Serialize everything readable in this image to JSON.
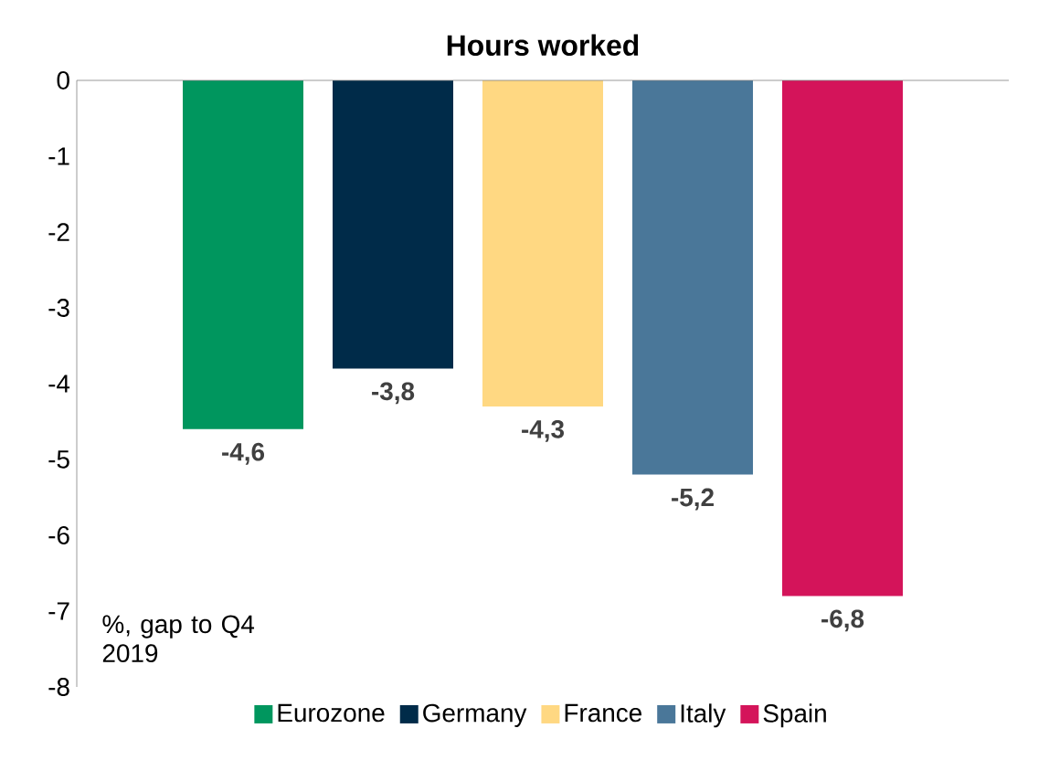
{
  "chart_data": {
    "type": "bar",
    "title": "Hours worked",
    "categories": [
      null
    ],
    "series": [
      {
        "name": "Eurozone",
        "color": "#00965e",
        "values": [
          -4.6
        ],
        "value_labels": [
          "-4,6"
        ]
      },
      {
        "name": "Germany",
        "color": "#002b49",
        "values": [
          -3.8
        ],
        "value_labels": [
          "-3,8"
        ]
      },
      {
        "name": "France",
        "color": "#ffd882",
        "values": [
          -4.3
        ],
        "value_labels": [
          "-4,3"
        ]
      },
      {
        "name": "Italy",
        "color": "#4a7799",
        "values": [
          -5.2
        ],
        "value_labels": [
          "-5,2"
        ]
      },
      {
        "name": "Spain",
        "color": "#d4145a",
        "values": [
          -6.8
        ],
        "value_labels": [
          "-6,8"
        ]
      }
    ],
    "ylim": [
      -8,
      0
    ],
    "yticks": [
      0,
      -1,
      -2,
      -3,
      -4,
      -5,
      -6,
      -7,
      -8
    ],
    "legend": "bottom",
    "annotations": [
      "%, gap to Q4 2019"
    ]
  }
}
